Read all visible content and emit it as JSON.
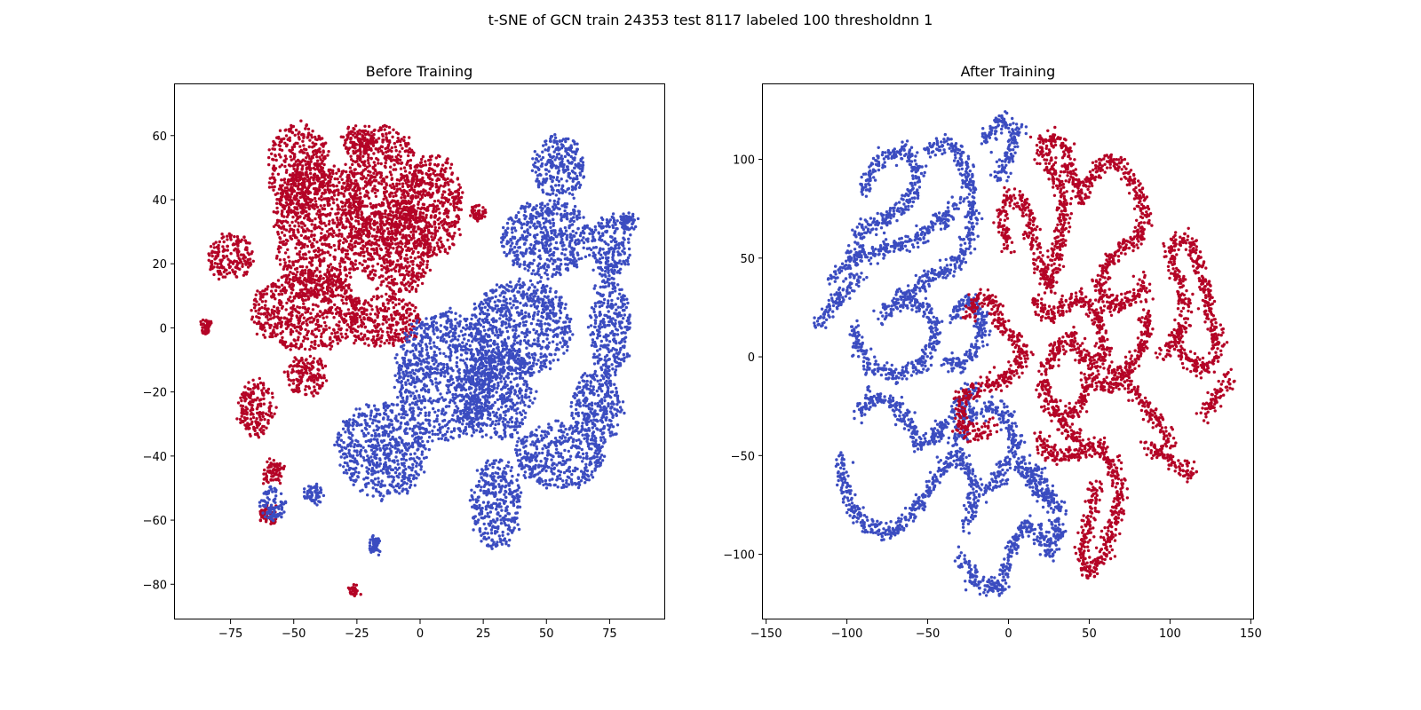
{
  "figure_title": "t-SNE of GCN train 24353 test 8117 labeled 100 thresholdnn 1",
  "colors": {
    "red": "#b40426",
    "blue": "#3b4cc0",
    "axis": "#000000",
    "background": "#ffffff"
  },
  "chart_data": [
    {
      "type": "scatter",
      "title": "Before Training",
      "xlabel": "",
      "ylabel": "",
      "xlim": [
        -97,
        97
      ],
      "ylim": [
        -91,
        76
      ],
      "xticks": [
        -75,
        -50,
        -25,
        0,
        25,
        50,
        75
      ],
      "yticks": [
        -80,
        -60,
        -40,
        -20,
        0,
        20,
        40,
        60
      ],
      "xtick_labels": [
        "−75",
        "−50",
        "−25",
        "0",
        "25",
        "50",
        "75"
      ],
      "ytick_labels": [
        "−80",
        "−60",
        "−40",
        "−20",
        "0",
        "20",
        "40",
        "60"
      ],
      "grid": false,
      "legend": "none",
      "series": [
        {
          "color": "#b40426",
          "clusters": [
            {
              "cx": -48,
              "cy": 50,
              "rx": 12,
              "ry": 14
            },
            {
              "cx": -75,
              "cy": 22,
              "rx": 9,
              "ry": 7
            },
            {
              "cx": -40,
              "cy": 30,
              "rx": 18,
              "ry": 22
            },
            {
              "cx": -15,
              "cy": 45,
              "rx": 15,
              "ry": 18
            },
            {
              "cx": -10,
              "cy": 25,
              "rx": 15,
              "ry": 15
            },
            {
              "cx": 5,
              "cy": 38,
              "rx": 12,
              "ry": 16
            },
            {
              "cx": -45,
              "cy": 5,
              "rx": 22,
              "ry": 12
            },
            {
              "cx": -25,
              "cy": 58,
              "rx": 6,
              "ry": 5
            },
            {
              "cx": -15,
              "cy": 2,
              "rx": 15,
              "ry": 8
            },
            {
              "cx": -65,
              "cy": -25,
              "rx": 7,
              "ry": 9
            },
            {
              "cx": -45,
              "cy": -15,
              "rx": 8,
              "ry": 6
            },
            {
              "cx": -85,
              "cy": 0,
              "rx": 2,
              "ry": 2
            },
            {
              "cx": -58,
              "cy": -45,
              "rx": 4,
              "ry": 4
            },
            {
              "cx": -60,
              "cy": -58,
              "rx": 4,
              "ry": 3
            },
            {
              "cx": -26,
              "cy": -82,
              "rx": 1,
              "ry": 1
            },
            {
              "cx": 23,
              "cy": 36,
              "rx": 3,
              "ry": 2
            }
          ]
        },
        {
          "color": "#3b4cc0",
          "clusters": [
            {
              "cx": 55,
              "cy": 50,
              "rx": 10,
              "ry": 10
            },
            {
              "cx": 50,
              "cy": 28,
              "rx": 18,
              "ry": 12
            },
            {
              "cx": 75,
              "cy": 25,
              "rx": 8,
              "ry": 10
            },
            {
              "cx": 40,
              "cy": 0,
              "rx": 20,
              "ry": 15
            },
            {
              "cx": 10,
              "cy": -15,
              "rx": 20,
              "ry": 20
            },
            {
              "cx": -15,
              "cy": -38,
              "rx": 18,
              "ry": 15
            },
            {
              "cx": 30,
              "cy": -55,
              "rx": 10,
              "ry": 14
            },
            {
              "cx": 55,
              "cy": -40,
              "rx": 18,
              "ry": 10
            },
            {
              "cx": 70,
              "cy": -25,
              "rx": 10,
              "ry": 12
            },
            {
              "cx": 75,
              "cy": 0,
              "rx": 8,
              "ry": 15
            },
            {
              "cx": 30,
              "cy": -20,
              "rx": 15,
              "ry": 15
            },
            {
              "cx": -58,
              "cy": -55,
              "rx": 5,
              "ry": 5
            },
            {
              "cx": -42,
              "cy": -52,
              "rx": 3,
              "ry": 3
            },
            {
              "cx": -18,
              "cy": -68,
              "rx": 2,
              "ry": 2
            },
            {
              "cx": 82,
              "cy": 33,
              "rx": 3,
              "ry": 3
            }
          ]
        }
      ]
    },
    {
      "type": "scatter",
      "title": "After Training",
      "xlabel": "",
      "ylabel": "",
      "xlim": [
        -152,
        152
      ],
      "ylim": [
        -133,
        138
      ],
      "xticks": [
        -150,
        -100,
        -50,
        0,
        50,
        100,
        150
      ],
      "yticks": [
        -100,
        -50,
        0,
        50,
        100
      ],
      "xtick_labels": [
        "−150",
        "−100",
        "−50",
        "0",
        "50",
        "100",
        "150"
      ],
      "ytick_labels": [
        "−100",
        "−50",
        "0",
        "50",
        "100"
      ],
      "grid": false,
      "legend": "none",
      "series": [
        {
          "color": "#3b4cc0",
          "curves": [
            [
              [
                -90,
                85
              ],
              [
                -80,
                100
              ],
              [
                -65,
                105
              ],
              [
                -55,
                95
              ],
              [
                -60,
                80
              ],
              [
                -75,
                70
              ],
              [
                -90,
                65
              ],
              [
                -95,
                55
              ]
            ],
            [
              [
                -50,
                105
              ],
              [
                -35,
                108
              ],
              [
                -25,
                95
              ],
              [
                -22,
                75
              ],
              [
                -25,
                55
              ],
              [
                -35,
                45
              ],
              [
                -50,
                40
              ],
              [
                -65,
                30
              ]
            ],
            [
              [
                -15,
                108
              ],
              [
                -5,
                120
              ],
              [
                5,
                115
              ],
              [
                0,
                100
              ],
              [
                -8,
                90
              ]
            ],
            [
              [
                -110,
                40
              ],
              [
                -95,
                50
              ],
              [
                -75,
                55
              ],
              [
                -55,
                60
              ],
              [
                -40,
                70
              ],
              [
                -30,
                80
              ]
            ],
            [
              [
                -118,
                15
              ],
              [
                -110,
                25
              ],
              [
                -100,
                35
              ],
              [
                -92,
                40
              ]
            ],
            [
              [
                -80,
                20
              ],
              [
                -65,
                30
              ],
              [
                -50,
                25
              ],
              [
                -45,
                10
              ],
              [
                -55,
                -5
              ],
              [
                -70,
                -10
              ],
              [
                -85,
                -5
              ],
              [
                -95,
                5
              ],
              [
                -95,
                15
              ]
            ],
            [
              [
                -35,
                20
              ],
              [
                -25,
                30
              ],
              [
                -15,
                20
              ],
              [
                -20,
                5
              ],
              [
                -30,
                -5
              ],
              [
                -40,
                -2
              ]
            ],
            [
              [
                -95,
                -30
              ],
              [
                -85,
                -20
              ],
              [
                -70,
                -25
              ],
              [
                -60,
                -35
              ],
              [
                -55,
                -45
              ],
              [
                -45,
                -40
              ],
              [
                -30,
                -25
              ],
              [
                -20,
                -15
              ]
            ],
            [
              [
                -105,
                -50
              ],
              [
                -100,
                -70
              ],
              [
                -90,
                -85
              ],
              [
                -75,
                -90
              ],
              [
                -60,
                -80
              ],
              [
                -50,
                -70
              ],
              [
                -40,
                -55
              ],
              [
                -30,
                -50
              ],
              [
                -20,
                -65
              ],
              [
                -25,
                -85
              ]
            ],
            [
              [
                -35,
                -45
              ],
              [
                -25,
                -30
              ],
              [
                -10,
                -25
              ],
              [
                0,
                -30
              ],
              [
                5,
                -45
              ],
              [
                -5,
                -60
              ],
              [
                -15,
                -70
              ]
            ],
            [
              [
                -30,
                -100
              ],
              [
                -20,
                -115
              ],
              [
                -5,
                -118
              ],
              [
                0,
                -100
              ],
              [
                10,
                -85
              ],
              [
                20,
                -90
              ],
              [
                25,
                -100
              ],
              [
                30,
                -90
              ],
              [
                30,
                -75
              ],
              [
                20,
                -60
              ],
              [
                10,
                -55
              ]
            ],
            [
              [
                5,
                -50
              ],
              [
                15,
                -65
              ],
              [
                25,
                -75
              ]
            ]
          ]
        },
        {
          "color": "#b40426",
          "curves": [
            [
              [
                0,
                55
              ],
              [
                -5,
                70
              ],
              [
                0,
                82
              ],
              [
                10,
                78
              ],
              [
                15,
                60
              ],
              [
                20,
                45
              ],
              [
                25,
                35
              ],
              [
                30,
                50
              ],
              [
                35,
                70
              ],
              [
                30,
                90
              ],
              [
                20,
                105
              ],
              [
                25,
                112
              ],
              [
                35,
                108
              ],
              [
                40,
                90
              ],
              [
                45,
                80
              ],
              [
                50,
                90
              ],
              [
                60,
                100
              ],
              [
                70,
                95
              ],
              [
                80,
                85
              ],
              [
                85,
                70
              ],
              [
                80,
                60
              ],
              [
                70,
                55
              ],
              [
                60,
                45
              ],
              [
                55,
                35
              ],
              [
                65,
                25
              ],
              [
                80,
                30
              ],
              [
                85,
                40
              ]
            ],
            [
              [
                -25,
                20
              ],
              [
                -20,
                30
              ],
              [
                -10,
                30
              ],
              [
                -5,
                15
              ],
              [
                5,
                10
              ],
              [
                10,
                0
              ],
              [
                0,
                -10
              ],
              [
                -15,
                -15
              ],
              [
                -30,
                -20
              ],
              [
                -30,
                -35
              ],
              [
                -20,
                -40
              ],
              [
                -10,
                -35
              ]
            ],
            [
              [
                15,
                30
              ],
              [
                25,
                20
              ],
              [
                35,
                25
              ],
              [
                45,
                30
              ],
              [
                55,
                20
              ],
              [
                60,
                5
              ],
              [
                55,
                -5
              ],
              [
                45,
                0
              ],
              [
                40,
                10
              ],
              [
                30,
                5
              ],
              [
                20,
                -10
              ],
              [
                25,
                -25
              ],
              [
                35,
                -30
              ],
              [
                45,
                -25
              ],
              [
                50,
                -10
              ],
              [
                60,
                -15
              ],
              [
                70,
                -10
              ],
              [
                80,
                0
              ],
              [
                85,
                10
              ],
              [
                85,
                25
              ]
            ],
            [
              [
                20,
                -40
              ],
              [
                25,
                -50
              ],
              [
                40,
                -50
              ],
              [
                55,
                -45
              ],
              [
                65,
                -55
              ],
              [
                70,
                -70
              ],
              [
                65,
                -85
              ],
              [
                60,
                -100
              ],
              [
                50,
                -110
              ],
              [
                45,
                -100
              ],
              [
                50,
                -80
              ],
              [
                55,
                -65
              ]
            ],
            [
              [
                95,
                0
              ],
              [
                105,
                10
              ],
              [
                110,
                25
              ],
              [
                105,
                40
              ],
              [
                100,
                55
              ],
              [
                105,
                60
              ],
              [
                115,
                55
              ],
              [
                120,
                40
              ],
              [
                125,
                20
              ],
              [
                130,
                10
              ],
              [
                125,
                -5
              ],
              [
                115,
                -5
              ],
              [
                105,
                5
              ]
            ],
            [
              [
                65,
                -5
              ],
              [
                75,
                -15
              ],
              [
                85,
                -25
              ],
              [
                95,
                -35
              ],
              [
                100,
                -45
              ]
            ],
            [
              [
                85,
                -45
              ],
              [
                95,
                -50
              ],
              [
                105,
                -55
              ],
              [
                115,
                -60
              ]
            ],
            [
              [
                120,
                -30
              ],
              [
                130,
                -20
              ],
              [
                135,
                -10
              ]
            ],
            [
              [
                30,
                -30
              ],
              [
                40,
                -40
              ],
              [
                50,
                -45
              ]
            ]
          ]
        }
      ]
    }
  ]
}
